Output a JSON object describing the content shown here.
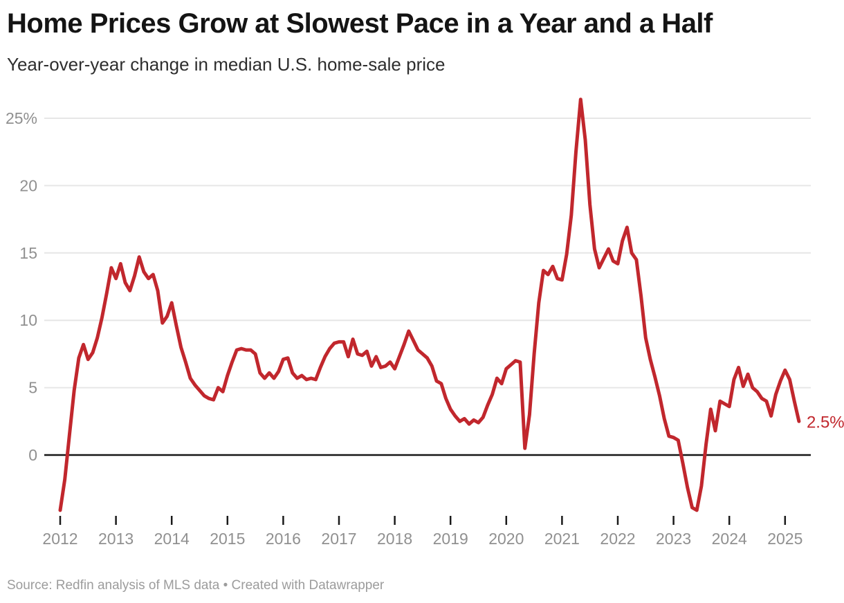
{
  "header": {
    "title": "Home Prices Grow at Slowest Pace in a Year and a Half",
    "subtitle": "Year-over-year change in median U.S. home-sale price"
  },
  "footer": {
    "source": "Source: Redfin analysis of MLS data • Created with Datawrapper"
  },
  "colors": {
    "line": "#c1272d",
    "grid": "#e6e6e6",
    "zero_line": "#151515",
    "tick_mark": "#1a1a1a",
    "axis_label": "#909090",
    "end_label": "#c1272d"
  },
  "chart_data": {
    "type": "line",
    "title": "Home Prices Grow at Slowest Pace in a Year and a Half",
    "subtitle": "Year-over-year change in median U.S. home-sale price",
    "unit": "%",
    "frequency": "monthly",
    "x_start": "2012-01",
    "x_end": "2025-04",
    "x_tick_labels": [
      "2012",
      "2013",
      "2014",
      "2015",
      "2016",
      "2017",
      "2018",
      "2019",
      "2020",
      "2021",
      "2022",
      "2023",
      "2024",
      "2025"
    ],
    "y_tick_values": [
      25,
      20,
      15,
      10,
      5,
      0
    ],
    "y_tick_labels": [
      "25%",
      "20",
      "15",
      "10",
      "5",
      "0"
    ],
    "ylim": [
      -5,
      27
    ],
    "grid": true,
    "legend": false,
    "baseline_zero": true,
    "end_label": "2.5%",
    "last_value": 2.5,
    "series": [
      {
        "name": "Year-over-year change in median U.S. home-sale price",
        "color": "#c1272d",
        "values": [
          -4.1,
          -1.8,
          1.5,
          4.8,
          7.2,
          8.2,
          7.1,
          7.6,
          8.7,
          10.2,
          12.0,
          13.9,
          13.1,
          14.2,
          12.8,
          12.2,
          13.3,
          14.7,
          13.6,
          13.1,
          13.4,
          12.2,
          9.8,
          10.3,
          11.3,
          9.6,
          8.0,
          6.9,
          5.7,
          5.2,
          4.8,
          4.4,
          4.2,
          4.1,
          5.0,
          4.7,
          5.9,
          6.9,
          7.8,
          7.9,
          7.8,
          7.8,
          7.5,
          6.1,
          5.7,
          6.1,
          5.7,
          6.2,
          7.1,
          7.2,
          6.1,
          5.7,
          5.9,
          5.6,
          5.7,
          5.6,
          6.5,
          7.3,
          7.9,
          8.3,
          8.4,
          8.4,
          7.3,
          8.6,
          7.5,
          7.4,
          7.7,
          6.6,
          7.3,
          6.5,
          6.6,
          6.9,
          6.4,
          7.3,
          8.2,
          9.2,
          8.5,
          7.8,
          7.5,
          7.2,
          6.6,
          5.5,
          5.3,
          4.2,
          3.4,
          2.9,
          2.5,
          2.7,
          2.3,
          2.6,
          2.4,
          2.8,
          3.7,
          4.5,
          5.7,
          5.3,
          6.4,
          6.7,
          7.0,
          6.9,
          0.5,
          3.0,
          7.5,
          11.3,
          13.7,
          13.4,
          14.0,
          13.1,
          13.0,
          14.9,
          17.8,
          22.5,
          26.4,
          23.4,
          18.6,
          15.3,
          13.9,
          14.6,
          15.3,
          14.4,
          14.2,
          15.9,
          16.9,
          15.0,
          14.5,
          11.8,
          8.7,
          7.1,
          5.8,
          4.4,
          2.7,
          1.4,
          1.3,
          1.1,
          -0.6,
          -2.4,
          -3.9,
          -4.1,
          -2.3,
          0.8,
          3.4,
          1.8,
          4.0,
          3.8,
          3.6,
          5.6,
          6.5,
          5.1,
          6.0,
          5.0,
          4.7,
          4.2,
          4.0,
          2.9,
          4.5,
          5.5,
          6.3,
          5.6,
          4.0,
          2.5
        ]
      }
    ]
  }
}
